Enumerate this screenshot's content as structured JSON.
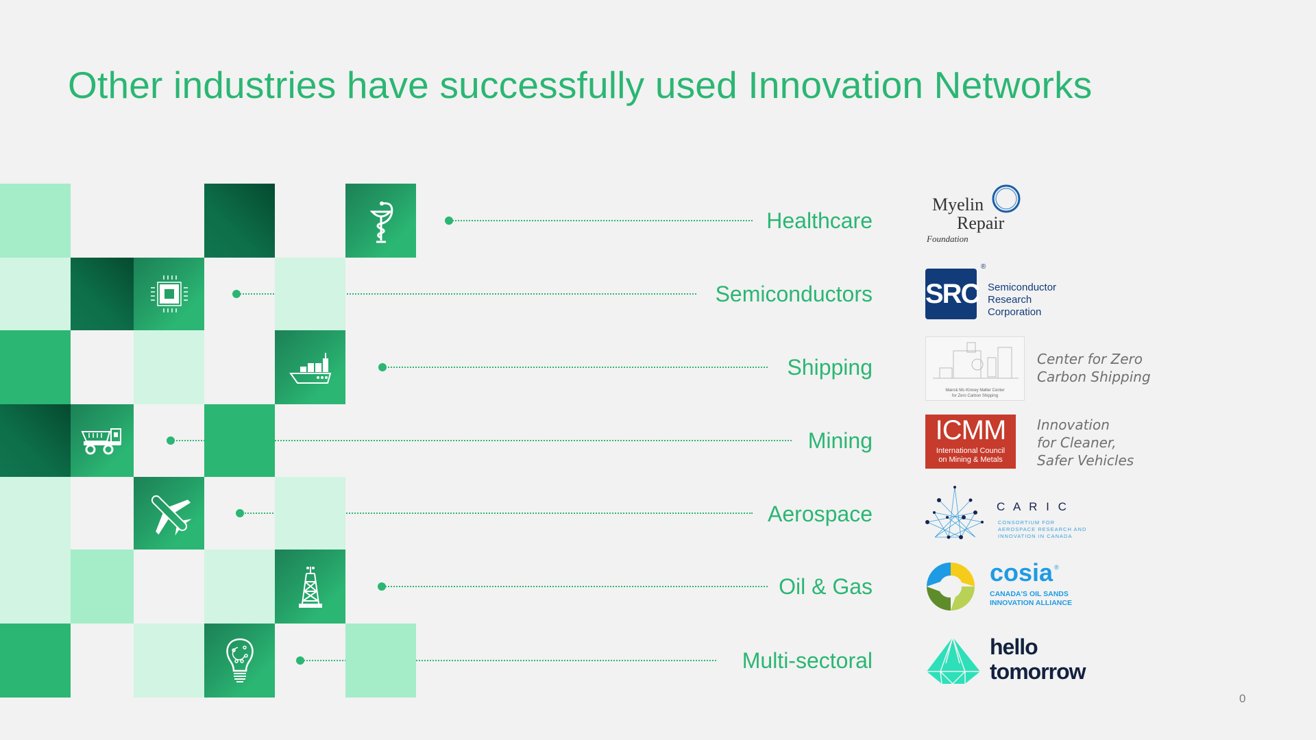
{
  "title": "Other industries have successfully used Innovation Networks",
  "colors": {
    "accent": "#2bb673",
    "dark": "#0b6b46",
    "mint": "#a5ecc9",
    "pale": "#d1f5e2",
    "background": "#f2f2f2"
  },
  "industries": [
    {
      "label": "Healthcare",
      "icon": "caduceus-icon"
    },
    {
      "label": "Semiconductors",
      "icon": "chip-icon"
    },
    {
      "label": "Shipping",
      "icon": "cargo-ship-icon"
    },
    {
      "label": "Mining",
      "icon": "mining-truck-icon"
    },
    {
      "label": "Aerospace",
      "icon": "airplane-icon"
    },
    {
      "label": "Oil & Gas",
      "icon": "oil-rig-icon"
    },
    {
      "label": "Multi-sectoral",
      "icon": "lightbulb-icon"
    }
  ],
  "logos": {
    "myelin": {
      "line1": "Myelin",
      "line2": "Repair",
      "line3": "Foundation"
    },
    "src": {
      "mark": "SRC",
      "reg": "®",
      "line1": "Semiconductor",
      "line2": "Research",
      "line3": "Corporation"
    },
    "czcs": {
      "caption1": "Mærsk Mc-Kinney Møller Center",
      "caption2": "for Zero Carbon Shipping",
      "text1": "Center for Zero",
      "text2": "Carbon Shipping"
    },
    "icmm": {
      "mark": "ICMM",
      "sub1": "International Council",
      "sub2": "on Mining & Metals",
      "text1": "Innovation",
      "text2": "for Cleaner,",
      "text3": "Safer Vehicles"
    },
    "caric": {
      "mark": "C A R I C",
      "sub1": "CONSORTIUM FOR",
      "sub2": "AEROSPACE RESEARCH AND",
      "sub3": "INNOVATION IN CANADA"
    },
    "cosia": {
      "mark": "cosia",
      "reg": "®",
      "sub1": "CANADA'S OIL SANDS",
      "sub2": "INNOVATION ALLIANCE"
    },
    "hello": {
      "line1": "hello",
      "line2": "tomorrow"
    }
  },
  "page_number": "0"
}
